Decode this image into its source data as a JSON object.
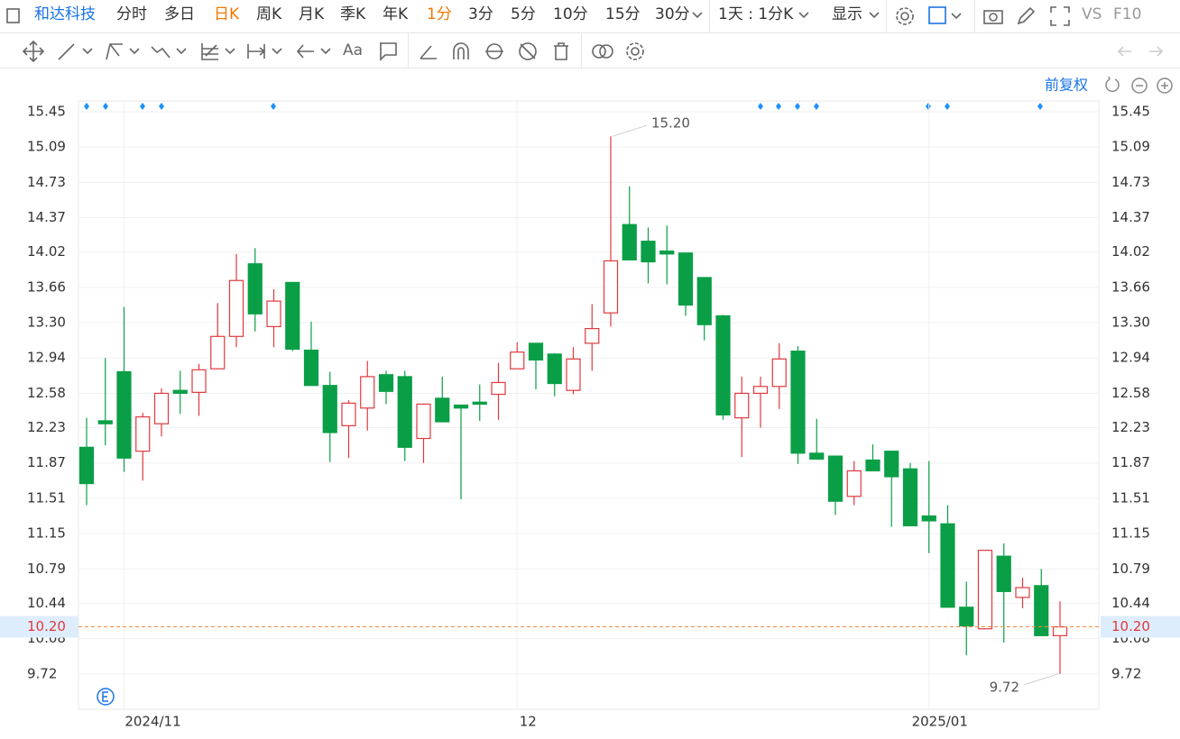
{
  "toolbar": {
    "stock_name": "和达科技",
    "periods": [
      "分时",
      "多日",
      "日K",
      "周K",
      "月K",
      "季K",
      "年K"
    ],
    "minutes": [
      "1分",
      "3分",
      "5分",
      "10分",
      "15分",
      "30分"
    ],
    "interval": "1天 : 1分K",
    "display": "显示",
    "compare": "VS",
    "f10": "F10",
    "font_tool": "Aa"
  },
  "chart_data": {
    "type": "candlestick",
    "adjust": "前复权",
    "categories": [
      null,
      null,
      "2024/11",
      null,
      null,
      null,
      null,
      null,
      null,
      null,
      null,
      null,
      null,
      null,
      null,
      null,
      null,
      null,
      null,
      null,
      null,
      null,
      null,
      "12",
      null,
      null,
      null,
      null,
      null,
      null,
      null,
      null,
      null,
      null,
      null,
      null,
      null,
      null,
      null,
      null,
      null,
      null,
      null,
      null,
      null,
      "2025/01",
      null,
      null,
      null,
      null,
      null,
      null,
      null
    ],
    "open": [
      12.03,
      12.3,
      12.8,
      11.99,
      12.27,
      12.61,
      12.59,
      12.83,
      13.16,
      13.9,
      13.26,
      13.71,
      13.02,
      12.66,
      12.25,
      12.43,
      12.77,
      12.75,
      12.12,
      12.53,
      12.46,
      12.49,
      12.57,
      12.83,
      13.09,
      12.98,
      12.61,
      13.09,
      13.4,
      14.3,
      14.13,
      14.03,
      14.01,
      13.76,
      13.37,
      12.33,
      12.58,
      12.65,
      13.01,
      11.97,
      11.94,
      11.53,
      11.9,
      11.99,
      11.81,
      11.33,
      11.25,
      10.4,
      10.18,
      10.92,
      10.5,
      10.62,
      10.11
    ],
    "high": [
      12.33,
      12.94,
      13.46,
      12.38,
      12.63,
      12.81,
      12.88,
      13.5,
      14.0,
      14.06,
      13.64,
      13.71,
      13.31,
      12.8,
      12.51,
      12.91,
      12.81,
      12.81,
      12.47,
      12.75,
      12.46,
      12.67,
      12.89,
      13.1,
      13.09,
      12.99,
      13.05,
      13.49,
      15.2,
      14.69,
      14.27,
      14.29,
      14.01,
      13.76,
      13.38,
      12.75,
      12.75,
      13.09,
      13.06,
      12.32,
      11.94,
      11.89,
      12.06,
      11.99,
      11.87,
      11.89,
      11.44,
      10.66,
      10.98,
      11.05,
      10.7,
      10.79,
      10.46
    ],
    "low": [
      11.44,
      12.05,
      11.78,
      11.69,
      12.14,
      12.37,
      12.35,
      12.83,
      13.05,
      13.21,
      13.05,
      13.01,
      12.66,
      11.88,
      11.92,
      12.2,
      12.47,
      11.89,
      11.87,
      12.29,
      11.5,
      12.3,
      12.31,
      12.83,
      12.62,
      12.55,
      12.57,
      12.81,
      13.26,
      13.94,
      13.7,
      13.69,
      13.37,
      13.12,
      12.31,
      11.93,
      12.23,
      12.42,
      11.86,
      11.91,
      11.34,
      11.44,
      11.79,
      11.22,
      11.23,
      10.95,
      10.4,
      9.91,
      10.18,
      10.04,
      10.39,
      10.11,
      9.72
    ],
    "close": [
      11.66,
      12.27,
      11.92,
      12.34,
      12.58,
      12.58,
      12.82,
      13.16,
      13.73,
      13.39,
      13.52,
      13.03,
      12.66,
      12.18,
      12.48,
      12.75,
      12.6,
      12.03,
      12.47,
      12.29,
      12.43,
      12.47,
      12.69,
      13.0,
      12.92,
      12.68,
      12.93,
      13.24,
      13.93,
      13.94,
      13.92,
      14.0,
      13.48,
      13.28,
      12.36,
      12.58,
      12.65,
      12.93,
      11.97,
      11.91,
      11.48,
      11.79,
      11.79,
      11.73,
      11.23,
      11.28,
      10.4,
      10.21,
      10.98,
      10.56,
      10.6,
      10.11,
      10.2
    ],
    "up_color": "#e0383e",
    "down_color": "#0a9f47",
    "ylim": [
      9.36,
      15.56
    ],
    "yticks": [
      15.45,
      15.09,
      14.73,
      14.37,
      14.02,
      13.66,
      {
        "value": 13.3,
        "label": "13.30"
      },
      12.94,
      12.58,
      12.23,
      11.87,
      11.51,
      11.15,
      10.79,
      10.44,
      10.08,
      9.72
    ],
    "grid": true,
    "last_price": {
      "value": 10.2,
      "label": "10.20"
    },
    "max_label": {
      "value": 15.2,
      "label": "15.20"
    },
    "min_label": {
      "value": 9.72,
      "label": "9.72"
    }
  }
}
